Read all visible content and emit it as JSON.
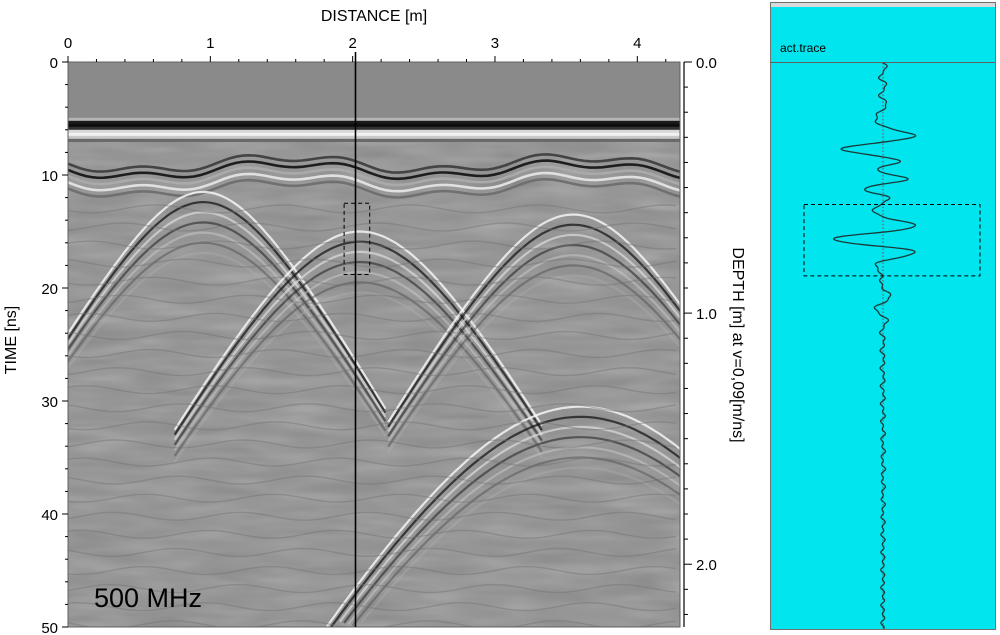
{
  "chart_data": {
    "type": "heatmap",
    "title": "",
    "xlabel": "DISTANCE [m]",
    "ylabel": "TIME [ns]",
    "y2label": "DEPTH [m] at v=0,09[m/ns]",
    "xlim": [
      0,
      4.3
    ],
    "ylim": [
      0,
      50
    ],
    "y2lim": [
      0,
      2.25
    ],
    "x_ticks": [
      "0",
      "1",
      "2",
      "3",
      "4"
    ],
    "y_ticks": [
      "0",
      "10",
      "20",
      "30",
      "40",
      "50"
    ],
    "y2_ticks": [
      "0.0",
      "1.0",
      "2.0"
    ],
    "frequency_label": "500 MHz",
    "colormap": "grayscale",
    "marker_line_x": 2.02,
    "selection_box": {
      "x": [
        1.94,
        2.12
      ],
      "time": [
        12.5,
        18.8
      ]
    },
    "reflectors": [
      {
        "kind": "direct-wave",
        "time": 6
      },
      {
        "kind": "surface",
        "time": 9
      },
      {
        "kind": "hyperbola",
        "apex_x": 0.95,
        "apex_time": 11.5
      },
      {
        "kind": "hyperbola",
        "apex_x": 2.05,
        "apex_time": 15
      },
      {
        "kind": "hyperbola",
        "apex_x": 3.55,
        "apex_time": 13.5
      },
      {
        "kind": "hyperbola",
        "apex_x": 3.6,
        "apex_time": 30.5
      }
    ]
  },
  "trace_panel": {
    "label": "act.trace",
    "background": "#00e5ee"
  }
}
